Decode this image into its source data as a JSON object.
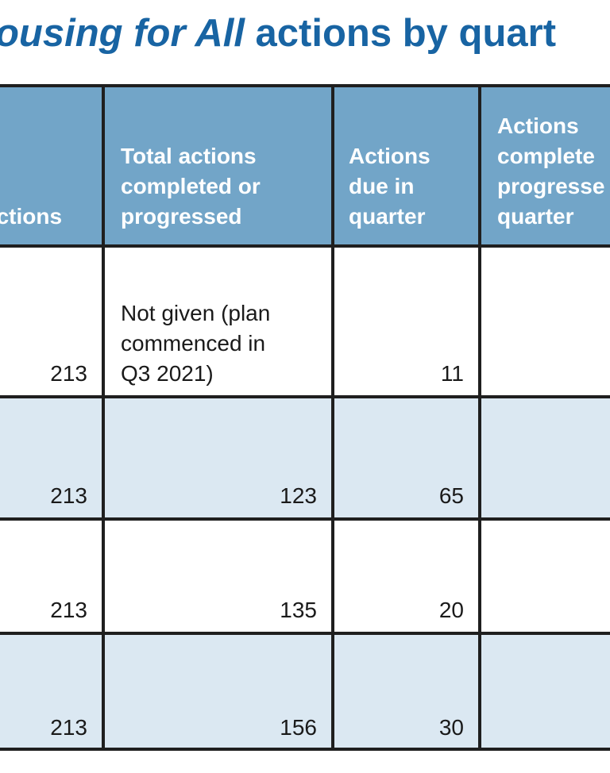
{
  "title": {
    "italic_part": "ousing for All",
    "rest": " actions by quart"
  },
  "table": {
    "headers": [
      "actions",
      "Total actions completed or progressed",
      "Actions due in quarter",
      "Actions completed progresse quarter"
    ],
    "header_lines": [
      [
        "actions"
      ],
      [
        "Total actions",
        "completed or",
        "progressed"
      ],
      [
        "Actions",
        "due in",
        "quarter"
      ],
      [
        "Actions",
        "complete",
        "progresse",
        "quarter"
      ]
    ],
    "rows": [
      {
        "total": "213",
        "completed_lines": [
          "Not given (plan",
          "commenced in",
          "Q3 2021)"
        ],
        "due": "11",
        "completed_in_quarter": ""
      },
      {
        "total": "213",
        "completed_lines": [
          "123"
        ],
        "due": "65",
        "completed_in_quarter": ""
      },
      {
        "total": "213",
        "completed_lines": [
          "135"
        ],
        "due": "20",
        "completed_in_quarter": ""
      },
      {
        "total": "213",
        "completed_lines": [
          "156"
        ],
        "due": "30",
        "completed_in_quarter": ""
      }
    ]
  },
  "colors": {
    "title": "#1864a3",
    "header_bg": "#72a5c8",
    "row_shade": "#dbe8f2",
    "border": "#1f1f1f"
  }
}
